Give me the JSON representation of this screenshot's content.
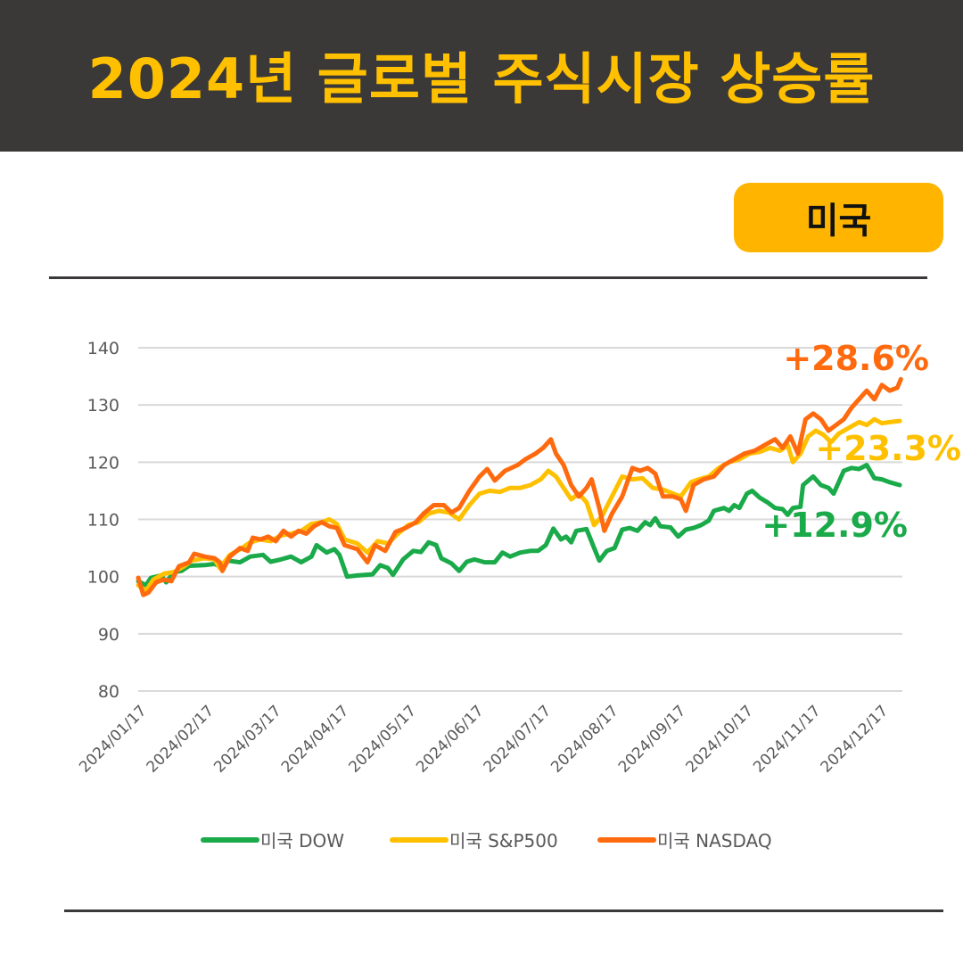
{
  "header": {
    "title": "2024년 글로벌 주식시장 상승률"
  },
  "badge": {
    "label": "미국"
  },
  "chart_data": {
    "type": "line",
    "y_ticks": [
      "140",
      "130",
      "120",
      "110",
      "100",
      "90",
      "80"
    ],
    "ylim": [
      80,
      140
    ],
    "x_ticks": [
      "2024/01/17",
      "2024/02/17",
      "2024/03/17",
      "2024/04/17",
      "2024/05/17",
      "2024/06/17",
      "2024/07/17",
      "2024/08/17",
      "2024/09/17",
      "2024/10/17",
      "2024/11/17",
      "2024/12/17"
    ],
    "grid": true,
    "legend_position": "bottom",
    "series": [
      {
        "name": "미국 DOW",
        "color": "#1aaa4a",
        "end_label": "+12.9%",
        "points": [
          [
            0,
            99.2
          ],
          [
            0.15,
            98.5
          ],
          [
            0.25,
            99.8
          ],
          [
            0.45,
            100.2
          ],
          [
            0.55,
            99.0
          ],
          [
            0.7,
            100.8
          ],
          [
            0.85,
            101.0
          ],
          [
            1.0,
            101.9
          ],
          [
            1.3,
            102.0
          ],
          [
            1.5,
            102.2
          ],
          [
            1.6,
            101.8
          ],
          [
            1.75,
            102.8
          ],
          [
            2.0,
            102.5
          ],
          [
            2.2,
            103.5
          ],
          [
            2.45,
            103.8
          ],
          [
            2.6,
            102.6
          ],
          [
            2.8,
            103.0
          ],
          [
            3.0,
            103.5
          ],
          [
            3.2,
            102.5
          ],
          [
            3.4,
            103.5
          ],
          [
            3.5,
            105.5
          ],
          [
            3.7,
            104.2
          ],
          [
            3.85,
            104.8
          ],
          [
            3.95,
            103.8
          ],
          [
            4.1,
            100.0
          ],
          [
            4.3,
            100.2
          ],
          [
            4.6,
            100.4
          ],
          [
            4.75,
            102.0
          ],
          [
            4.9,
            101.5
          ],
          [
            5.0,
            100.3
          ],
          [
            5.2,
            103.0
          ],
          [
            5.4,
            104.5
          ],
          [
            5.55,
            104.3
          ],
          [
            5.7,
            106.0
          ],
          [
            5.85,
            105.5
          ],
          [
            5.95,
            103.2
          ],
          [
            6.15,
            102.3
          ],
          [
            6.3,
            101.0
          ],
          [
            6.45,
            102.6
          ],
          [
            6.6,
            103.0
          ],
          [
            6.8,
            102.5
          ],
          [
            7.0,
            102.5
          ],
          [
            7.15,
            104.2
          ],
          [
            7.3,
            103.5
          ],
          [
            7.5,
            104.2
          ],
          [
            7.7,
            104.5
          ],
          [
            7.85,
            104.5
          ],
          [
            8.0,
            105.5
          ],
          [
            8.15,
            108.4
          ],
          [
            8.3,
            106.5
          ],
          [
            8.4,
            107.0
          ],
          [
            8.5,
            106.0
          ],
          [
            8.6,
            108.0
          ],
          [
            8.8,
            108.3
          ],
          [
            8.95,
            105.0
          ],
          [
            9.05,
            102.8
          ],
          [
            9.2,
            104.5
          ],
          [
            9.35,
            105.0
          ],
          [
            9.5,
            108.2
          ],
          [
            9.65,
            108.5
          ],
          [
            9.8,
            108.0
          ],
          [
            9.95,
            109.5
          ],
          [
            10.05,
            109.0
          ],
          [
            10.15,
            110.2
          ],
          [
            10.25,
            108.8
          ],
          [
            10.45,
            108.6
          ],
          [
            10.6,
            107.0
          ],
          [
            10.75,
            108.2
          ],
          [
            10.9,
            108.5
          ],
          [
            11.05,
            109.0
          ],
          [
            11.2,
            109.8
          ],
          [
            11.3,
            111.5
          ],
          [
            11.5,
            112.0
          ],
          [
            11.6,
            111.5
          ],
          [
            11.7,
            112.5
          ],
          [
            11.8,
            112.0
          ],
          [
            11.95,
            114.5
          ],
          [
            12.05,
            115.0
          ],
          [
            12.2,
            113.8
          ],
          [
            12.35,
            113.0
          ],
          [
            12.5,
            112.0
          ],
          [
            12.65,
            111.8
          ],
          [
            12.75,
            110.8
          ],
          [
            12.85,
            112.0
          ],
          [
            13.0,
            112.2
          ],
          [
            13.05,
            116.0
          ],
          [
            13.25,
            117.5
          ],
          [
            13.4,
            116.0
          ],
          [
            13.55,
            115.5
          ],
          [
            13.65,
            114.5
          ],
          [
            13.85,
            118.5
          ],
          [
            14.0,
            119.0
          ],
          [
            14.15,
            118.8
          ],
          [
            14.3,
            119.5
          ],
          [
            14.45,
            117.2
          ],
          [
            14.6,
            117.0
          ],
          [
            14.75,
            116.5
          ],
          [
            14.95,
            116.0
          ]
        ]
      },
      {
        "name": "미국 S&P500",
        "color": "#ffc000",
        "end_label": "+23.3%",
        "points": [
          [
            0,
            98.5
          ],
          [
            0.15,
            97.5
          ],
          [
            0.3,
            99.5
          ],
          [
            0.5,
            100.5
          ],
          [
            0.7,
            100.8
          ],
          [
            0.9,
            101.8
          ],
          [
            1.05,
            102.8
          ],
          [
            1.3,
            103.2
          ],
          [
            1.5,
            103.0
          ],
          [
            1.6,
            101.5
          ],
          [
            1.8,
            103.8
          ],
          [
            2.0,
            104.8
          ],
          [
            2.2,
            106.0
          ],
          [
            2.4,
            106.5
          ],
          [
            2.6,
            106.2
          ],
          [
            2.8,
            107.2
          ],
          [
            3.0,
            107.5
          ],
          [
            3.2,
            108.0
          ],
          [
            3.4,
            109.2
          ],
          [
            3.6,
            109.5
          ],
          [
            3.75,
            110.0
          ],
          [
            3.9,
            109.2
          ],
          [
            4.05,
            106.5
          ],
          [
            4.3,
            105.8
          ],
          [
            4.5,
            104.2
          ],
          [
            4.7,
            106.2
          ],
          [
            4.9,
            105.8
          ],
          [
            5.1,
            107.5
          ],
          [
            5.3,
            109.0
          ],
          [
            5.5,
            109.5
          ],
          [
            5.7,
            111.0
          ],
          [
            5.9,
            111.5
          ],
          [
            6.1,
            111.2
          ],
          [
            6.3,
            110.0
          ],
          [
            6.5,
            112.5
          ],
          [
            6.7,
            114.5
          ],
          [
            6.9,
            115.0
          ],
          [
            7.1,
            114.8
          ],
          [
            7.3,
            115.5
          ],
          [
            7.5,
            115.5
          ],
          [
            7.7,
            116.0
          ],
          [
            7.9,
            117.0
          ],
          [
            8.05,
            118.5
          ],
          [
            8.2,
            117.5
          ],
          [
            8.35,
            115.5
          ],
          [
            8.5,
            113.5
          ],
          [
            8.65,
            114.5
          ],
          [
            8.8,
            113.0
          ],
          [
            8.95,
            109.0
          ],
          [
            9.1,
            110.5
          ],
          [
            9.3,
            114.0
          ],
          [
            9.5,
            117.5
          ],
          [
            9.7,
            117.0
          ],
          [
            9.9,
            117.2
          ],
          [
            10.1,
            115.5
          ],
          [
            10.3,
            115.2
          ],
          [
            10.5,
            114.5
          ],
          [
            10.65,
            114.0
          ],
          [
            10.85,
            116.5
          ],
          [
            11.0,
            117.0
          ],
          [
            11.2,
            117.5
          ],
          [
            11.4,
            119.0
          ],
          [
            11.6,
            120.0
          ],
          [
            11.8,
            120.5
          ],
          [
            12.0,
            121.5
          ],
          [
            12.2,
            121.8
          ],
          [
            12.4,
            122.5
          ],
          [
            12.6,
            122.0
          ],
          [
            12.75,
            123.0
          ],
          [
            12.85,
            120.0
          ],
          [
            13.0,
            121.5
          ],
          [
            13.15,
            124.5
          ],
          [
            13.3,
            125.5
          ],
          [
            13.45,
            124.8
          ],
          [
            13.6,
            123.5
          ],
          [
            13.75,
            125.0
          ],
          [
            13.95,
            126.0
          ],
          [
            14.15,
            127.0
          ],
          [
            14.3,
            126.5
          ],
          [
            14.45,
            127.5
          ],
          [
            14.6,
            126.8
          ],
          [
            14.75,
            127.0
          ],
          [
            14.95,
            127.2
          ]
        ]
      },
      {
        "name": "미국 NASDAQ",
        "color": "#ff6a0e",
        "end_label": "+28.6%",
        "points": [
          [
            0,
            99.8
          ],
          [
            0.1,
            96.8
          ],
          [
            0.2,
            97.2
          ],
          [
            0.35,
            99.0
          ],
          [
            0.5,
            99.5
          ],
          [
            0.65,
            99.2
          ],
          [
            0.8,
            101.8
          ],
          [
            1.0,
            102.5
          ],
          [
            1.1,
            104.0
          ],
          [
            1.3,
            103.5
          ],
          [
            1.5,
            103.2
          ],
          [
            1.6,
            102.5
          ],
          [
            1.65,
            101.0
          ],
          [
            1.8,
            103.5
          ],
          [
            2.0,
            105.0
          ],
          [
            2.15,
            104.5
          ],
          [
            2.25,
            106.8
          ],
          [
            2.4,
            106.5
          ],
          [
            2.55,
            107.0
          ],
          [
            2.7,
            106.2
          ],
          [
            2.85,
            108.0
          ],
          [
            3.0,
            107.0
          ],
          [
            3.15,
            108.0
          ],
          [
            3.3,
            107.5
          ],
          [
            3.45,
            108.8
          ],
          [
            3.6,
            109.5
          ],
          [
            3.75,
            108.8
          ],
          [
            3.9,
            108.5
          ],
          [
            4.05,
            105.5
          ],
          [
            4.3,
            104.8
          ],
          [
            4.5,
            102.5
          ],
          [
            4.65,
            105.5
          ],
          [
            4.85,
            104.5
          ],
          [
            5.05,
            107.8
          ],
          [
            5.25,
            108.5
          ],
          [
            5.45,
            109.5
          ],
          [
            5.6,
            111.0
          ],
          [
            5.8,
            112.5
          ],
          [
            6.0,
            112.5
          ],
          [
            6.15,
            111.2
          ],
          [
            6.3,
            112.0
          ],
          [
            6.5,
            115.0
          ],
          [
            6.7,
            117.5
          ],
          [
            6.85,
            118.8
          ],
          [
            7.0,
            116.8
          ],
          [
            7.2,
            118.5
          ],
          [
            7.45,
            119.5
          ],
          [
            7.6,
            120.5
          ],
          [
            7.8,
            121.5
          ],
          [
            7.95,
            122.5
          ],
          [
            8.1,
            124.0
          ],
          [
            8.2,
            121.5
          ],
          [
            8.35,
            119.5
          ],
          [
            8.5,
            116.0
          ],
          [
            8.65,
            114.0
          ],
          [
            8.8,
            115.5
          ],
          [
            8.9,
            117.0
          ],
          [
            9.05,
            112.0
          ],
          [
            9.15,
            108.0
          ],
          [
            9.3,
            111.0
          ],
          [
            9.5,
            114.0
          ],
          [
            9.7,
            119.0
          ],
          [
            9.85,
            118.5
          ],
          [
            10.0,
            119.0
          ],
          [
            10.15,
            118.0
          ],
          [
            10.3,
            114.0
          ],
          [
            10.5,
            114.0
          ],
          [
            10.65,
            113.5
          ],
          [
            10.75,
            111.5
          ],
          [
            10.9,
            116.0
          ],
          [
            11.1,
            117.0
          ],
          [
            11.3,
            117.5
          ],
          [
            11.5,
            119.5
          ],
          [
            11.7,
            120.5
          ],
          [
            11.9,
            121.5
          ],
          [
            12.1,
            122.0
          ],
          [
            12.3,
            123.0
          ],
          [
            12.5,
            124.0
          ],
          [
            12.65,
            122.5
          ],
          [
            12.8,
            124.5
          ],
          [
            12.95,
            121.5
          ],
          [
            13.1,
            127.5
          ],
          [
            13.25,
            128.5
          ],
          [
            13.4,
            127.5
          ],
          [
            13.55,
            125.5
          ],
          [
            13.7,
            126.5
          ],
          [
            13.85,
            127.5
          ],
          [
            14.0,
            129.5
          ],
          [
            14.15,
            131.0
          ],
          [
            14.3,
            132.5
          ],
          [
            14.45,
            131.0
          ],
          [
            14.6,
            133.5
          ],
          [
            14.75,
            132.5
          ],
          [
            14.9,
            133.0
          ],
          [
            14.97,
            134.5
          ]
        ]
      }
    ]
  }
}
